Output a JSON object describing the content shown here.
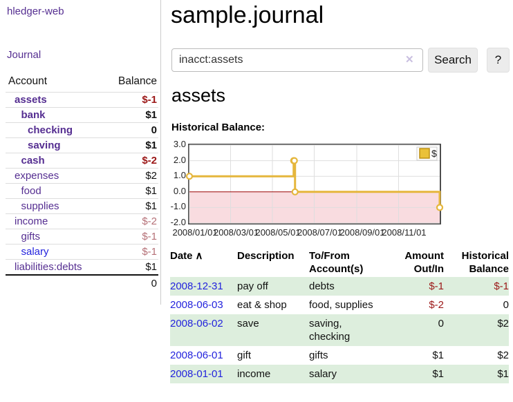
{
  "sidebar": {
    "brand": "hledger-web",
    "nav": {
      "journal": "Journal"
    },
    "table": {
      "account_header": "Account",
      "balance_header": "Balance"
    },
    "accounts": [
      {
        "name": "assets",
        "depth": 0,
        "bold": true,
        "blue": false,
        "balance": "$-1",
        "balance_style": "neg-strong"
      },
      {
        "name": "bank",
        "depth": 1,
        "bold": true,
        "blue": false,
        "balance": "$1",
        "balance_style": "normal"
      },
      {
        "name": "checking",
        "depth": 2,
        "bold": true,
        "blue": false,
        "balance": "0",
        "balance_style": "normal"
      },
      {
        "name": "saving",
        "depth": 2,
        "bold": true,
        "blue": false,
        "balance": "$1",
        "balance_style": "normal"
      },
      {
        "name": "cash",
        "depth": 1,
        "bold": true,
        "blue": false,
        "balance": "$-2",
        "balance_style": "neg-strong"
      },
      {
        "name": "expenses",
        "depth": 0,
        "bold": false,
        "blue": false,
        "balance": "$2",
        "balance_style": "normal"
      },
      {
        "name": "food",
        "depth": 1,
        "bold": false,
        "blue": false,
        "balance": "$1",
        "balance_style": "normal"
      },
      {
        "name": "supplies",
        "depth": 1,
        "bold": false,
        "blue": false,
        "balance": "$1",
        "balance_style": "normal"
      },
      {
        "name": "income",
        "depth": 0,
        "bold": false,
        "blue": false,
        "balance": "$-2",
        "balance_style": "neg-soft"
      },
      {
        "name": "gifts",
        "depth": 1,
        "bold": false,
        "blue": false,
        "balance": "$-1",
        "balance_style": "neg-soft"
      },
      {
        "name": "salary",
        "depth": 1,
        "bold": false,
        "blue": true,
        "balance": "$-1",
        "balance_style": "neg-soft"
      },
      {
        "name": "liabilities:debts",
        "depth": 0,
        "bold": false,
        "blue": false,
        "balance": "$1",
        "balance_style": "normal"
      }
    ],
    "total": "0"
  },
  "main": {
    "title": "sample.journal",
    "search": {
      "value": "inacct:assets",
      "clear_icon": "✕",
      "search_button": "Search",
      "help_button": "?"
    },
    "account_title": "assets",
    "chart_heading": "Historical Balance:"
  },
  "chart_data": {
    "type": "line",
    "title": "Historical Balance:",
    "step": true,
    "series": [
      {
        "name": "$",
        "color": "#e5b63c",
        "points": [
          {
            "x": "2008-01-01",
            "y": 1
          },
          {
            "x": "2008-06-01",
            "y": 2
          },
          {
            "x": "2008-06-02",
            "y": 2
          },
          {
            "x": "2008-06-03",
            "y": 0
          },
          {
            "x": "2008-12-31",
            "y": -1
          }
        ]
      }
    ],
    "x_range": [
      "2008-01-01",
      "2008-12-31"
    ],
    "x_ticks": [
      "2008/01/01",
      "2008/03/01",
      "2008/05/01",
      "2008/07/01",
      "2008/09/01",
      "2008/11/01"
    ],
    "y_ticks": [
      "3.0",
      "2.0",
      "1.0",
      "0.0",
      "-1.0",
      "-2.0"
    ],
    "ylim": [
      -2,
      3
    ],
    "grid": true,
    "legend_position": "top-right",
    "negative_region_color": "#f9dce0",
    "zero_line_color": "#990000"
  },
  "register": {
    "headers": {
      "date": "Date",
      "sort_icon": "∧",
      "description": "Description",
      "accounts": "To/From Account(s)",
      "amount": "Amount Out/In",
      "balance": "Historical Balance"
    },
    "rows": [
      {
        "date": "2008-12-31",
        "description": "pay off",
        "accounts": "debts",
        "amount": "$-1",
        "amount_negative": true,
        "balance": "$-1",
        "balance_negative": true
      },
      {
        "date": "2008-06-03",
        "description": "eat & shop",
        "accounts": "food, supplies",
        "amount": "$-2",
        "amount_negative": true,
        "balance": "0",
        "balance_negative": false
      },
      {
        "date": "2008-06-02",
        "description": "save",
        "accounts": "saving, checking",
        "amount": "0",
        "amount_negative": false,
        "balance": "$2",
        "balance_negative": false
      },
      {
        "date": "2008-06-01",
        "description": "gift",
        "accounts": "gifts",
        "amount": "$1",
        "amount_negative": false,
        "balance": "$2",
        "balance_negative": false
      },
      {
        "date": "2008-01-01",
        "description": "income",
        "accounts": "salary",
        "amount": "$1",
        "amount_negative": false,
        "balance": "$1",
        "balance_negative": false
      }
    ]
  },
  "colors": {
    "accent_purple": "#552e91",
    "link_blue": "#2323dd",
    "negative_strong": "#9b1717",
    "negative_soft": "#b57077",
    "row_green": "#ddeedd",
    "chart_line_gold": "#e5b63c",
    "chart_negative_region": "#f9dce0",
    "chart_zero_line": "#990000"
  }
}
